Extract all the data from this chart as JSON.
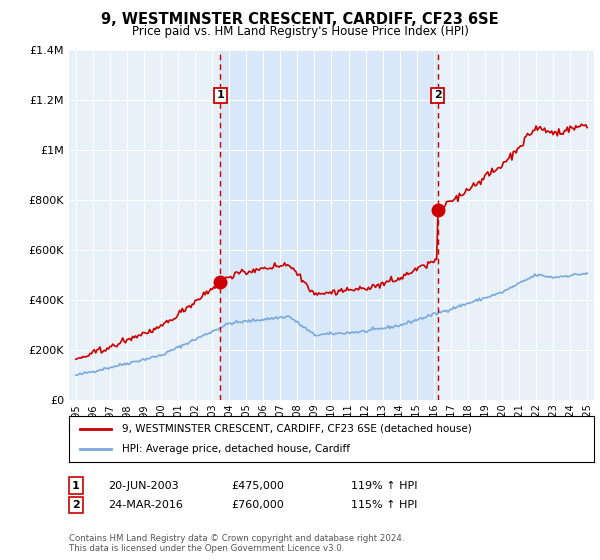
{
  "title": "9, WESTMINSTER CRESCENT, CARDIFF, CF23 6SE",
  "subtitle": "Price paid vs. HM Land Registry's House Price Index (HPI)",
  "legend_line1": "9, WESTMINSTER CRESCENT, CARDIFF, CF23 6SE (detached house)",
  "legend_line2": "HPI: Average price, detached house, Cardiff",
  "footer": "Contains HM Land Registry data © Crown copyright and database right 2024.\nThis data is licensed under the Open Government Licence v3.0.",
  "annotation1": {
    "label": "1",
    "date": "20-JUN-2003",
    "price": "£475,000",
    "hpi": "119% ↑ HPI"
  },
  "annotation2": {
    "label": "2",
    "date": "24-MAR-2016",
    "price": "£760,000",
    "hpi": "115% ↑ HPI"
  },
  "sale1_x": 2003.47,
  "sale1_y": 475000,
  "sale2_x": 2016.23,
  "sale2_y": 760000,
  "vline1_x": 2003.47,
  "vline2_x": 2016.23,
  "ylim": [
    0,
    1400000
  ],
  "xlim": [
    1994.6,
    2025.4
  ],
  "red_color": "#cc0000",
  "blue_color": "#7aaadd",
  "highlight_color": "#d8e8f8",
  "background_color": "#e8f0f8",
  "plot_bg": "#e8f0f8"
}
